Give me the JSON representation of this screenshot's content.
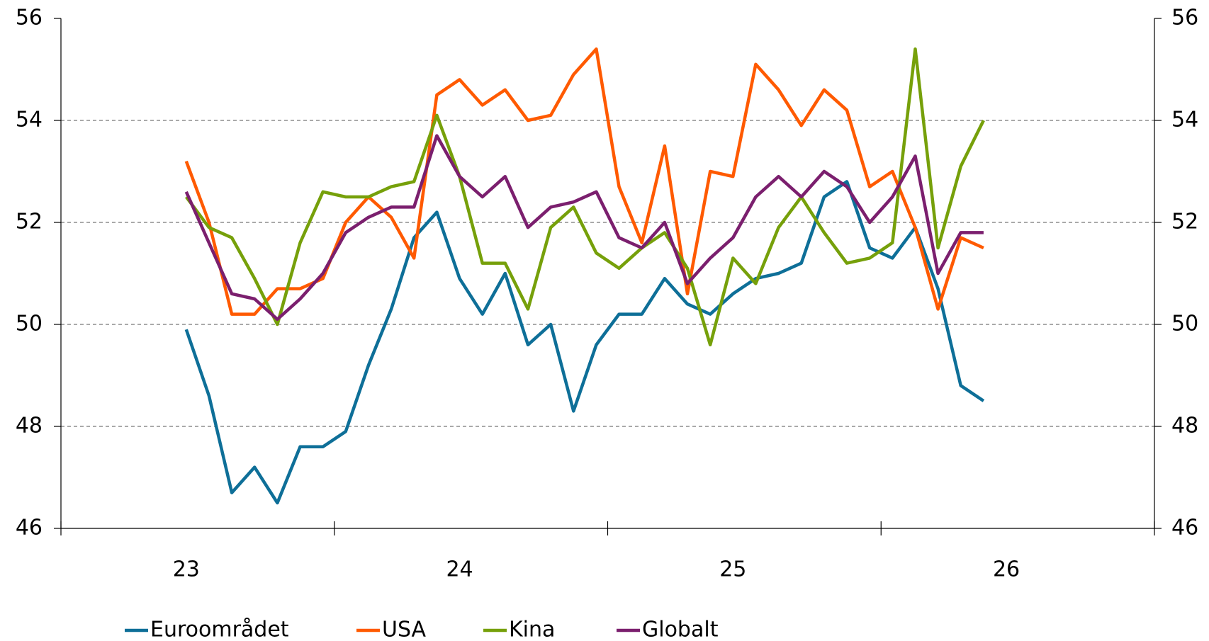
{
  "chart_data": {
    "type": "line",
    "x": [
      23,
      23.0833,
      23.1667,
      23.25,
      23.3333,
      23.4167,
      23.5,
      23.5833,
      23.6667,
      23.75,
      23.8333,
      23.9167,
      24,
      24.0833,
      24.1667,
      24.25,
      24.3333,
      24.4167,
      24.5,
      24.5833,
      24.6667,
      24.75,
      24.8333,
      24.9167,
      25,
      25.0833,
      25.1667,
      25.25,
      25.3333,
      25.4167,
      25.5,
      25.5833,
      25.6667,
      25.75,
      25.8333,
      25.9167
    ],
    "series": [
      {
        "name": "Euroområdet",
        "color": "#0e6f98",
        "values": [
          49.9,
          48.6,
          46.7,
          47.2,
          46.5,
          47.6,
          47.6,
          47.9,
          49.2,
          50.3,
          51.7,
          52.2,
          50.9,
          50.2,
          51.0,
          49.6,
          50.0,
          48.3,
          49.6,
          50.2,
          50.2,
          50.9,
          50.4,
          50.2,
          50.6,
          50.9,
          51.0,
          51.2,
          52.5,
          52.8,
          51.5,
          51.3,
          51.9,
          50.7,
          48.8,
          48.5
        ]
      },
      {
        "name": "USA",
        "color": "#ff5a00",
        "values": [
          53.2,
          52.0,
          50.2,
          50.2,
          50.7,
          50.7,
          50.9,
          52.0,
          52.5,
          52.1,
          51.3,
          54.5,
          54.8,
          54.3,
          54.6,
          54.0,
          54.1,
          54.9,
          55.4,
          52.7,
          51.6,
          53.5,
          50.6,
          53.0,
          52.9,
          55.1,
          54.6,
          53.9,
          54.6,
          54.2,
          52.7,
          53.0,
          51.9,
          50.3,
          51.7,
          51.5
        ]
      },
      {
        "name": "Kina",
        "color": "#76a00a",
        "values": [
          52.5,
          51.9,
          51.7,
          50.9,
          50.0,
          51.6,
          52.6,
          52.5,
          52.5,
          52.7,
          52.8,
          54.1,
          52.9,
          51.2,
          51.2,
          50.3,
          51.9,
          52.3,
          51.4,
          51.1,
          51.5,
          51.8,
          51.1,
          49.6,
          51.3,
          50.8,
          51.9,
          52.5,
          51.8,
          51.2,
          51.3,
          51.6,
          55.4,
          51.5,
          53.1,
          54.0
        ]
      },
      {
        "name": "Globalt",
        "color": "#7b1f6e",
        "values": [
          52.6,
          51.6,
          50.6,
          50.5,
          50.1,
          50.5,
          51.0,
          51.8,
          52.1,
          52.3,
          52.3,
          53.7,
          52.9,
          52.5,
          52.9,
          51.9,
          52.3,
          52.4,
          52.6,
          51.7,
          51.5,
          52.0,
          50.8,
          51.3,
          51.7,
          52.5,
          52.9,
          52.5,
          53.0,
          52.7,
          52.0,
          52.5,
          53.3,
          51.0,
          51.8,
          51.8
        ]
      }
    ],
    "xlim": [
      22.5417,
      26.5417
    ],
    "xticks": [
      23,
      24,
      25,
      26
    ],
    "xtick_marks": [
      22.5417,
      23.5417,
      24.5417,
      25.5417,
      26.5417
    ],
    "ylim": [
      46,
      56
    ],
    "yticks": [
      46,
      48,
      50,
      52,
      54,
      56
    ],
    "y2lim": [
      46,
      56
    ],
    "y2ticks": [
      46,
      48,
      50,
      52,
      54,
      56
    ],
    "grid": true,
    "legend": "bottom"
  }
}
